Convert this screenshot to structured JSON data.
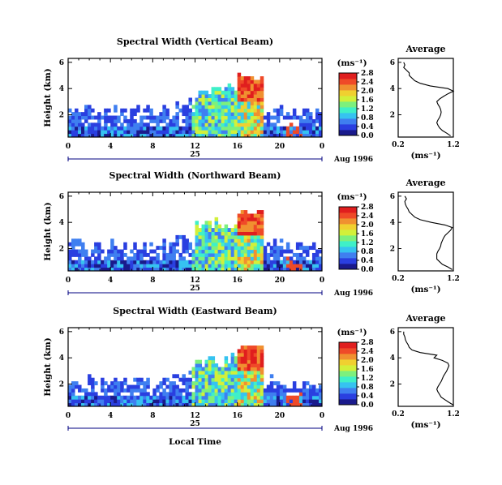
{
  "colors": {
    "scale": [
      "#1a1a8c",
      "#2a3fe0",
      "#3f7ff0",
      "#36c3f0",
      "#3ff0c8",
      "#7df07d",
      "#d2f03a",
      "#f0d030",
      "#f09030",
      "#ef4a28",
      "#e01e1e"
    ],
    "axis": "#000000",
    "date_axis": "#000080"
  },
  "chart_data": [
    {
      "type": "heatmap",
      "title": "Spectral Width (Vertical Beam)",
      "ylabel": "Height (km)",
      "x_ticks": [
        "0",
        "4",
        "8",
        "12",
        "16",
        "20",
        "0"
      ],
      "y_ticks": [
        "2",
        "4",
        "6"
      ],
      "xlim": [
        0,
        24
      ],
      "ylim": [
        0.3,
        6.3
      ],
      "colorbar": {
        "unit": "(ms⁻¹)",
        "ticks": [
          "0.0",
          "0.4",
          "0.8",
          "1.2",
          "1.6",
          "2.0",
          "2.4",
          "2.8"
        ],
        "range": [
          0,
          2.8
        ]
      },
      "date": {
        "day": "25",
        "month": "Aug 1996"
      },
      "profile": {
        "title": "Average",
        "xlabel": "(ms⁻¹)",
        "x_ticks": [
          "0.2",
          "1.2"
        ],
        "y_ticks": [
          "2",
          "4",
          "6"
        ],
        "xlim": [
          0.2,
          1.2
        ],
        "ylim": [
          0.3,
          6.3
        ],
        "heights": [
          0.4,
          0.6,
          0.8,
          1.0,
          1.2,
          1.4,
          1.6,
          1.8,
          2.0,
          2.2,
          2.4,
          2.6,
          2.8,
          3.0,
          3.2,
          3.4,
          3.6,
          3.8,
          4.0,
          4.2,
          4.4,
          4.6,
          4.8,
          5.0,
          5.2,
          5.4,
          5.6,
          5.8,
          6.0
        ],
        "values": [
          1.15,
          1.08,
          1.0,
          0.95,
          0.92,
          0.9,
          0.92,
          0.95,
          0.97,
          0.98,
          0.97,
          0.95,
          0.92,
          0.9,
          0.95,
          1.02,
          1.1,
          1.2,
          1.1,
          0.78,
          0.6,
          0.5,
          0.45,
          0.4,
          0.4,
          0.35,
          0.3,
          0.32,
          0.3
        ]
      }
    },
    {
      "type": "heatmap",
      "title": "Spectral Width (Northward Beam)",
      "ylabel": "Height (km)",
      "x_ticks": [
        "0",
        "4",
        "8",
        "12",
        "16",
        "20",
        "0"
      ],
      "y_ticks": [
        "2",
        "4",
        "6"
      ],
      "xlim": [
        0,
        24
      ],
      "ylim": [
        0.3,
        6.3
      ],
      "colorbar": {
        "unit": "(ms⁻¹)",
        "ticks": [
          "0.0",
          "0.4",
          "0.8",
          "1.2",
          "1.6",
          "2.0",
          "2.4",
          "2.8"
        ],
        "range": [
          0,
          2.8
        ]
      },
      "date": {
        "day": "25",
        "month": "Aug 1996"
      },
      "profile": {
        "title": "Average",
        "xlabel": "(ms⁻¹)",
        "x_ticks": [
          "0.2",
          "1.2"
        ],
        "y_ticks": [
          "2",
          "4",
          "6"
        ],
        "xlim": [
          0.2,
          1.2
        ],
        "ylim": [
          0.3,
          6.3
        ],
        "heights": [
          0.4,
          0.6,
          0.8,
          1.0,
          1.2,
          1.4,
          1.6,
          1.8,
          2.0,
          2.2,
          2.4,
          2.6,
          2.8,
          3.0,
          3.2,
          3.4,
          3.6,
          3.8,
          4.0,
          4.2,
          4.4,
          4.6,
          4.8,
          5.0,
          5.2,
          5.4,
          5.6,
          5.8,
          6.0
        ],
        "values": [
          1.18,
          1.1,
          1.0,
          0.95,
          0.9,
          0.9,
          0.9,
          0.92,
          0.95,
          0.97,
          0.98,
          1.0,
          1.02,
          1.05,
          1.1,
          1.15,
          1.18,
          1.05,
          0.8,
          0.6,
          0.5,
          0.45,
          0.4,
          0.38,
          0.35,
          0.33,
          0.32,
          0.35,
          0.32
        ]
      }
    },
    {
      "type": "heatmap",
      "title": "Spectral Width (Eastward Beam)",
      "ylabel": "Height (km)",
      "xlabel": "Local Time",
      "x_ticks": [
        "0",
        "4",
        "8",
        "12",
        "16",
        "20",
        "0"
      ],
      "y_ticks": [
        "2",
        "4",
        "6"
      ],
      "xlim": [
        0,
        24
      ],
      "ylim": [
        0.3,
        6.3
      ],
      "colorbar": {
        "unit": "(ms⁻¹)",
        "ticks": [
          "0.0",
          "0.4",
          "0.8",
          "1.2",
          "1.6",
          "2.0",
          "2.4",
          "2.8"
        ],
        "range": [
          0,
          2.8
        ]
      },
      "date": {
        "day": "25",
        "month": "Aug 1996"
      },
      "profile": {
        "title": "Average",
        "xlabel": "(ms⁻¹)",
        "x_ticks": [
          "0.2",
          "1.2"
        ],
        "y_ticks": [
          "2",
          "4",
          "6"
        ],
        "xlim": [
          0.2,
          1.2
        ],
        "ylim": [
          0.3,
          6.3
        ],
        "heights": [
          0.4,
          0.6,
          0.8,
          1.0,
          1.2,
          1.4,
          1.6,
          1.8,
          2.0,
          2.2,
          2.4,
          2.6,
          2.8,
          3.0,
          3.2,
          3.4,
          3.6,
          3.8,
          4.0,
          4.2,
          4.4,
          4.6,
          4.8,
          5.0,
          5.2,
          5.4,
          5.6,
          5.8,
          6.0
        ],
        "values": [
          1.2,
          1.12,
          1.05,
          0.98,
          0.95,
          0.92,
          0.9,
          0.92,
          0.95,
          0.98,
          1.0,
          1.02,
          1.05,
          1.08,
          1.1,
          1.12,
          1.1,
          1.0,
          0.85,
          0.9,
          0.6,
          0.45,
          0.4,
          0.38,
          0.35,
          0.33,
          0.32,
          0.3,
          0.3
        ]
      }
    }
  ]
}
